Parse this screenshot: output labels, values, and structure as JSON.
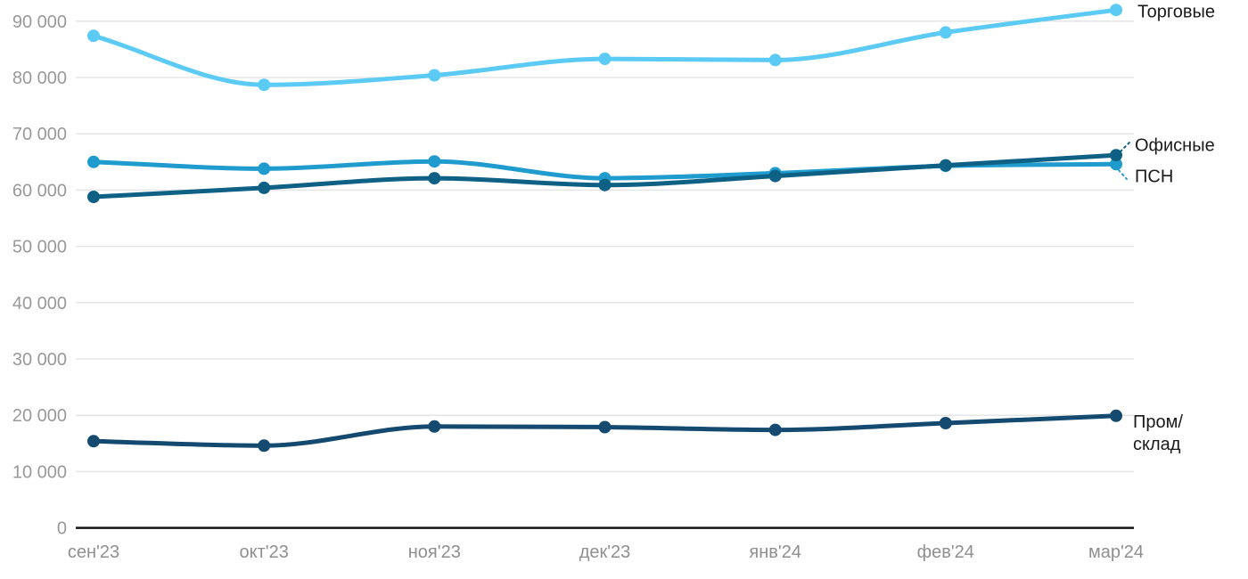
{
  "chart_data": {
    "type": "line",
    "title": "",
    "xlabel": "",
    "ylabel": "",
    "grid": true,
    "legend_position": "direct-right",
    "ylim": [
      0,
      92000
    ],
    "categories": [
      "сен'23",
      "окт'23",
      "ноя'23",
      "дек'23",
      "янв'24",
      "фев'24",
      "мар'24"
    ],
    "yticks": [
      {
        "value": 0,
        "label": "0"
      },
      {
        "value": 10000,
        "label": "10 000"
      },
      {
        "value": 20000,
        "label": "20 000"
      },
      {
        "value": 30000,
        "label": "30 000"
      },
      {
        "value": 40000,
        "label": "40 000"
      },
      {
        "value": 50000,
        "label": "50 000"
      },
      {
        "value": 60000,
        "label": "60 000"
      },
      {
        "value": 70000,
        "label": "70 000"
      },
      {
        "value": 80000,
        "label": "80 000"
      },
      {
        "value": 90000,
        "label": "90 000"
      }
    ],
    "series": [
      {
        "name": "Торговые",
        "label": "Торговые",
        "color": "#5bcbf5",
        "values": [
          87400,
          78700,
          80400,
          83300,
          83100,
          88000,
          92000
        ]
      },
      {
        "name": "Офисные",
        "label": "Офисные",
        "color": "#0e6184",
        "values": [
          58800,
          60400,
          62100,
          60900,
          62500,
          64400,
          66200
        ]
      },
      {
        "name": "ПСН",
        "label": "ПСН",
        "color": "#1f9bce",
        "values": [
          65000,
          63800,
          65100,
          62100,
          63000,
          64300,
          64600
        ]
      },
      {
        "name": "Пром/склад",
        "label": "Пром/\nсклад",
        "color": "#154a70",
        "values": [
          15400,
          14600,
          18000,
          17900,
          17400,
          18600,
          19900
        ]
      }
    ],
    "colors": {
      "gridline": "#e5e5e5",
      "axis_line": "#141414",
      "y_tick_text": "#999999",
      "x_tick_text": "#8f8f8f",
      "series_label_text": "#1a1a1a",
      "background": "#ffffff"
    }
  }
}
